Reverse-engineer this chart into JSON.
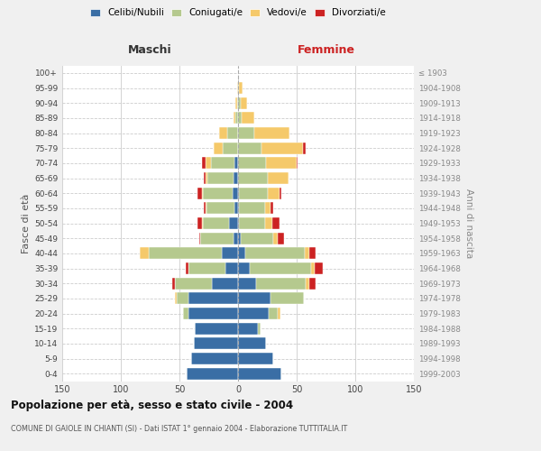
{
  "age_groups": [
    "0-4",
    "5-9",
    "10-14",
    "15-19",
    "20-24",
    "25-29",
    "30-34",
    "35-39",
    "40-44",
    "45-49",
    "50-54",
    "55-59",
    "60-64",
    "65-69",
    "70-74",
    "75-79",
    "80-84",
    "85-89",
    "90-94",
    "95-99",
    "100+"
  ],
  "birth_years": [
    "1999-2003",
    "1994-1998",
    "1989-1993",
    "1984-1988",
    "1979-1983",
    "1974-1978",
    "1969-1973",
    "1964-1968",
    "1959-1963",
    "1954-1958",
    "1949-1953",
    "1944-1948",
    "1939-1943",
    "1934-1938",
    "1929-1933",
    "1924-1928",
    "1919-1923",
    "1914-1918",
    "1909-1913",
    "1904-1908",
    "≤ 1903"
  ],
  "maschi": {
    "celibi": [
      44,
      40,
      38,
      37,
      42,
      42,
      22,
      11,
      14,
      4,
      8,
      3,
      5,
      4,
      3,
      0,
      0,
      0,
      0,
      0,
      0
    ],
    "coniugati": [
      0,
      0,
      0,
      0,
      5,
      10,
      32,
      31,
      62,
      28,
      22,
      24,
      25,
      22,
      20,
      13,
      9,
      2,
      1,
      0,
      0
    ],
    "vedovi": [
      0,
      0,
      0,
      0,
      0,
      2,
      0,
      0,
      8,
      0,
      1,
      1,
      1,
      2,
      5,
      8,
      7,
      2,
      1,
      1,
      0
    ],
    "divorziati": [
      0,
      0,
      0,
      0,
      0,
      0,
      2,
      3,
      0,
      1,
      4,
      1,
      4,
      1,
      3,
      0,
      0,
      0,
      0,
      0,
      0
    ]
  },
  "femmine": {
    "nubili": [
      37,
      30,
      24,
      17,
      26,
      28,
      15,
      10,
      6,
      2,
      1,
      1,
      1,
      0,
      0,
      0,
      0,
      0,
      0,
      0,
      0
    ],
    "coniugate": [
      0,
      0,
      0,
      2,
      8,
      28,
      43,
      52,
      51,
      28,
      22,
      22,
      24,
      25,
      24,
      20,
      14,
      3,
      2,
      1,
      0
    ],
    "vedove": [
      0,
      0,
      0,
      0,
      2,
      0,
      3,
      3,
      4,
      4,
      6,
      5,
      10,
      18,
      26,
      35,
      30,
      11,
      6,
      3,
      0
    ],
    "divorziate": [
      0,
      0,
      0,
      0,
      0,
      0,
      5,
      7,
      5,
      5,
      6,
      2,
      2,
      0,
      1,
      3,
      0,
      0,
      0,
      0,
      0
    ]
  },
  "color_celibi": "#3a6ea5",
  "color_coniugati": "#b5c98e",
  "color_vedovi": "#f5c96a",
  "color_divorziati": "#cc2222",
  "xlim": 150,
  "title": "Popolazione per età, sesso e stato civile - 2004",
  "subtitle": "COMUNE DI GAIOLE IN CHIANTI (SI) - Dati ISTAT 1° gennaio 2004 - Elaborazione TUTTITALIA.IT",
  "xlabel_left": "Maschi",
  "xlabel_right": "Femmine",
  "ylabel_left": "Fasce di età",
  "ylabel_right": "Anni di nascita",
  "bg_color": "#f0f0f0",
  "plot_bg": "#ffffff",
  "grid_color": "#cccccc"
}
